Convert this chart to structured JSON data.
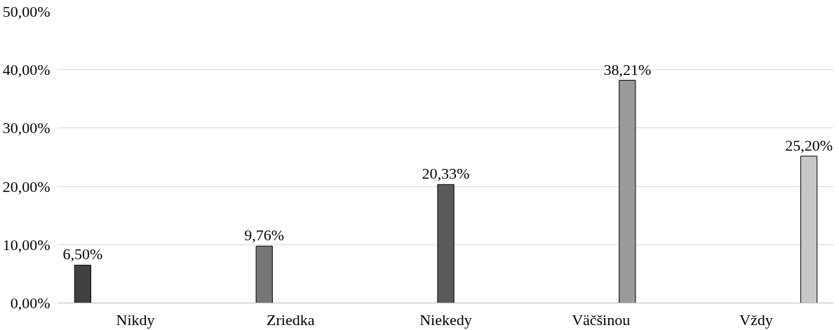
{
  "chart_data": {
    "type": "bar",
    "categories": [
      "Nikdy",
      "Zriedka",
      "Niekedy",
      "Väčšinou",
      "Vždy"
    ],
    "series": [
      {
        "color": "#404040",
        "values": [
          6.5,
          null,
          null,
          null,
          null
        ],
        "value_labels": [
          "6,50%",
          null,
          null,
          null,
          null
        ]
      },
      {
        "color": "#767676",
        "values": [
          null,
          9.76,
          null,
          null,
          null
        ],
        "value_labels": [
          null,
          "9,76%",
          null,
          null,
          null
        ]
      },
      {
        "color": "#5a5a5a",
        "values": [
          null,
          null,
          20.33,
          null,
          null
        ],
        "value_labels": [
          null,
          null,
          "20,33%",
          null,
          null
        ]
      },
      {
        "color": "#9a9a9a",
        "values": [
          null,
          null,
          null,
          38.21,
          null
        ],
        "value_labels": [
          null,
          null,
          null,
          "38,21%",
          null
        ]
      },
      {
        "color": "#c8c8c8",
        "values": [
          null,
          null,
          null,
          null,
          25.2
        ],
        "value_labels": [
          null,
          null,
          null,
          null,
          "25,20%"
        ]
      }
    ],
    "ylim": [
      0,
      50
    ],
    "yticks": [
      {
        "value": 0,
        "label": "0,00%"
      },
      {
        "value": 10,
        "label": "10,00%"
      },
      {
        "value": 20,
        "label": "20,00%"
      },
      {
        "value": 30,
        "label": "30,00%"
      },
      {
        "value": 40,
        "label": "40,00%"
      },
      {
        "value": 50,
        "label": "50,00%"
      }
    ],
    "grid": "y"
  }
}
